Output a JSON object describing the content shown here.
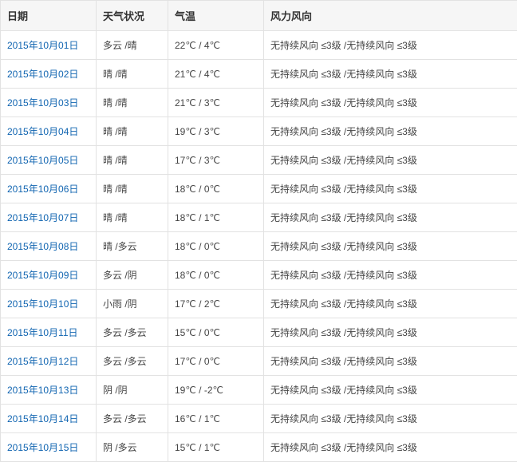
{
  "table": {
    "headers": {
      "date": "日期",
      "condition": "天气状况",
      "temperature": "气温",
      "wind": "风力风向"
    },
    "header_bg": "#f6f6f6",
    "border_color": "#e2e2e2",
    "link_color": "#1165b1",
    "text_color": "#444444",
    "header_text_color": "#333333",
    "font_size": 12,
    "header_font_size": 13,
    "col_widths": {
      "date": 120,
      "condition": 90,
      "temperature": 120,
      "wind": 318
    },
    "rows": [
      {
        "date": "2015年10月01日",
        "condition": "多云 /晴",
        "temperature": "22℃ / 4℃",
        "wind": "无持续风向 ≤3级 /无持续风向 ≤3级"
      },
      {
        "date": "2015年10月02日",
        "condition": "晴 /晴",
        "temperature": "21℃ / 4℃",
        "wind": "无持续风向 ≤3级 /无持续风向 ≤3级"
      },
      {
        "date": "2015年10月03日",
        "condition": "晴 /晴",
        "temperature": "21℃ / 3℃",
        "wind": "无持续风向 ≤3级 /无持续风向 ≤3级"
      },
      {
        "date": "2015年10月04日",
        "condition": "晴 /晴",
        "temperature": "19℃ / 3℃",
        "wind": "无持续风向 ≤3级 /无持续风向 ≤3级"
      },
      {
        "date": "2015年10月05日",
        "condition": "晴 /晴",
        "temperature": "17℃ / 3℃",
        "wind": "无持续风向 ≤3级 /无持续风向 ≤3级"
      },
      {
        "date": "2015年10月06日",
        "condition": "晴 /晴",
        "temperature": "18℃ / 0℃",
        "wind": "无持续风向 ≤3级 /无持续风向 ≤3级"
      },
      {
        "date": "2015年10月07日",
        "condition": "晴 /晴",
        "temperature": "18℃ / 1℃",
        "wind": "无持续风向 ≤3级 /无持续风向 ≤3级"
      },
      {
        "date": "2015年10月08日",
        "condition": "晴 /多云",
        "temperature": "18℃ / 0℃",
        "wind": "无持续风向 ≤3级 /无持续风向 ≤3级"
      },
      {
        "date": "2015年10月09日",
        "condition": "多云 /阴",
        "temperature": "18℃ / 0℃",
        "wind": "无持续风向 ≤3级 /无持续风向 ≤3级"
      },
      {
        "date": "2015年10月10日",
        "condition": "小雨 /阴",
        "temperature": "17℃ / 2℃",
        "wind": "无持续风向 ≤3级 /无持续风向 ≤3级"
      },
      {
        "date": "2015年10月11日",
        "condition": "多云 /多云",
        "temperature": "15℃ / 0℃",
        "wind": "无持续风向 ≤3级 /无持续风向 ≤3级"
      },
      {
        "date": "2015年10月12日",
        "condition": "多云 /多云",
        "temperature": "17℃ / 0℃",
        "wind": "无持续风向 ≤3级 /无持续风向 ≤3级"
      },
      {
        "date": "2015年10月13日",
        "condition": "阴 /阴",
        "temperature": "19℃ / -2℃",
        "wind": "无持续风向 ≤3级 /无持续风向 ≤3级"
      },
      {
        "date": "2015年10月14日",
        "condition": "多云 /多云",
        "temperature": "16℃ / 1℃",
        "wind": "无持续风向 ≤3级 /无持续风向 ≤3级"
      },
      {
        "date": "2015年10月15日",
        "condition": "阴 /多云",
        "temperature": "15℃ / 1℃",
        "wind": "无持续风向 ≤3级 /无持续风向 ≤3级"
      }
    ]
  }
}
